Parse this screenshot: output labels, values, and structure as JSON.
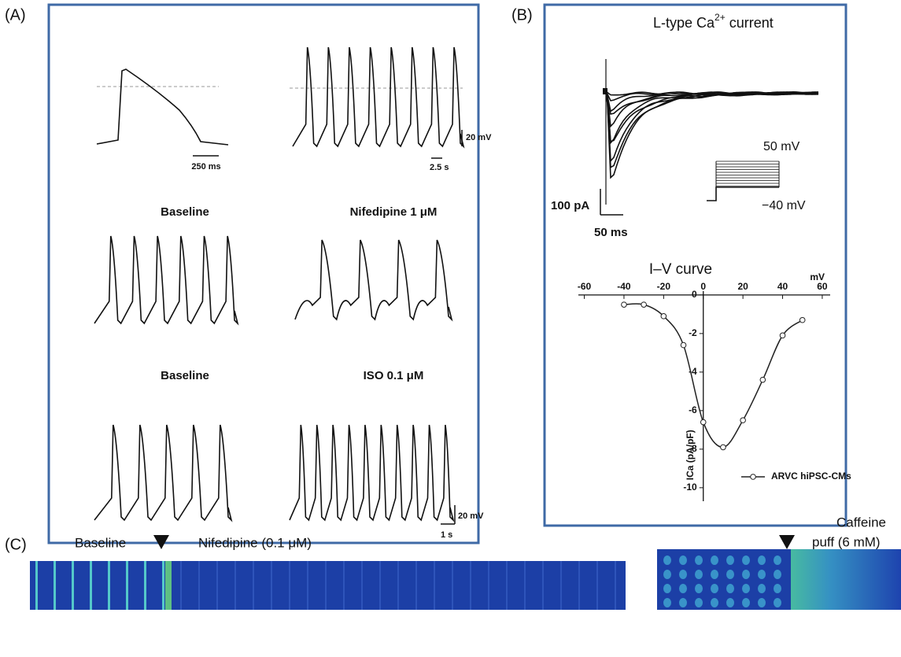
{
  "panel_a": {
    "label": "(A)",
    "scale_top": {
      "time_single": "250 ms",
      "voltage": "20 mV",
      "time_train": "2.5 s"
    },
    "conditions": [
      "Baseline",
      "Nifedipine 1 μM",
      "Baseline",
      "ISO 0.1 μM"
    ],
    "scale_bottom": {
      "voltage": "20 mV",
      "time": "1 s"
    }
  },
  "panel_b": {
    "label": "(B)",
    "title": {
      "text": "L-type Ca",
      "superscript": "2+",
      "suffix": "current"
    },
    "protocol": {
      "top": "50 mV",
      "bottom": "−40 mV"
    },
    "scale": {
      "current": "100 pA",
      "time": "50 ms"
    }
  },
  "chart_data": {
    "type": "line",
    "title": "I–V curve",
    "x_label": "mV",
    "y_label": "ICa (pA/pF)",
    "x": [
      -40,
      -30,
      -20,
      -10,
      0,
      10,
      20,
      30,
      40,
      50
    ],
    "series": [
      {
        "name": "ARVC hiPSC-CMs",
        "color": "#222222",
        "values": [
          -0.5,
          -0.5,
          -1.1,
          -2.6,
          -6.6,
          -7.9,
          -6.5,
          -4.4,
          -2.1,
          -1.3
        ]
      }
    ],
    "xlim": [
      -63,
      64
    ],
    "ylim": [
      -10.7,
      0.2
    ],
    "xticks": [
      -60,
      -40,
      -20,
      0,
      20,
      40,
      60
    ],
    "yticks": [
      -10,
      -8,
      -6,
      -4,
      -2,
      0
    ],
    "legend": "lower right"
  },
  "panel_c": {
    "label": "(C)",
    "baseline": "Baseline",
    "drug": "Nifedipine (0.1 μM)",
    "caffeine": [
      "Caffeine",
      "puff (6 mM)"
    ]
  }
}
